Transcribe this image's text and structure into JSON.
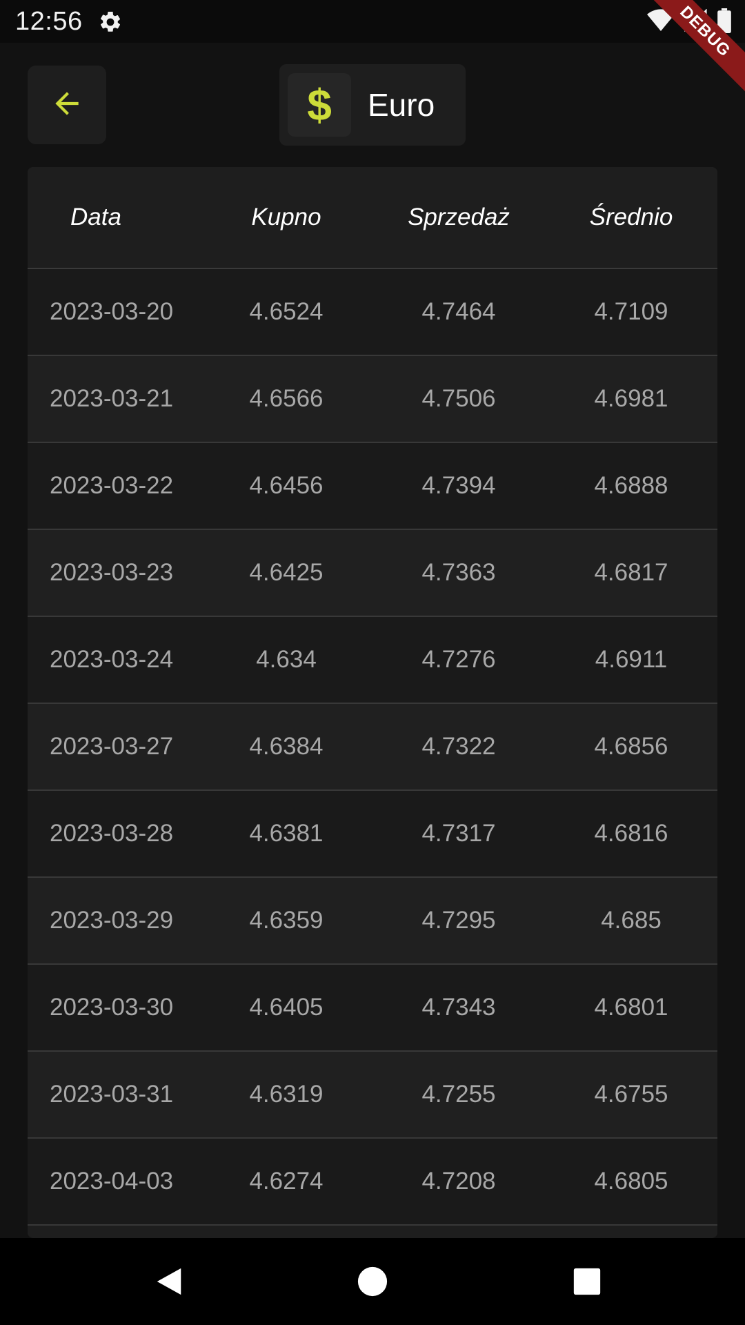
{
  "status_bar": {
    "time": "12:56",
    "icons": [
      "gear-icon",
      "wifi-icon",
      "signal-icon",
      "battery-icon"
    ]
  },
  "debug_banner": {
    "label": "DEBUG"
  },
  "header": {
    "back_icon": "arrow-left-icon",
    "currency_icon": "$",
    "currency_name": "Euro"
  },
  "table": {
    "columns": [
      "Data",
      "Kupno",
      "Sprzedaż",
      "Średnio"
    ],
    "rows": [
      [
        "2023-03-20",
        "4.6524",
        "4.7464",
        "4.7109"
      ],
      [
        "2023-03-21",
        "4.6566",
        "4.7506",
        "4.6981"
      ],
      [
        "2023-03-22",
        "4.6456",
        "4.7394",
        "4.6888"
      ],
      [
        "2023-03-23",
        "4.6425",
        "4.7363",
        "4.6817"
      ],
      [
        "2023-03-24",
        "4.634",
        "4.7276",
        "4.6911"
      ],
      [
        "2023-03-27",
        "4.6384",
        "4.7322",
        "4.6856"
      ],
      [
        "2023-03-28",
        "4.6381",
        "4.7317",
        "4.6816"
      ],
      [
        "2023-03-29",
        "4.6359",
        "4.7295",
        "4.685"
      ],
      [
        "2023-03-30",
        "4.6405",
        "4.7343",
        "4.6801"
      ],
      [
        "2023-03-31",
        "4.6319",
        "4.7255",
        "4.6755"
      ],
      [
        "2023-04-03",
        "4.6274",
        "4.7208",
        "4.6805"
      ]
    ]
  },
  "colors": {
    "accent": "#cddc39",
    "background": "#121212",
    "surface": "#1e1e1e",
    "debug": "#8b1a1a"
  },
  "nav_bar": {
    "icons": [
      "back-triangle-icon",
      "home-circle-icon",
      "recents-square-icon"
    ]
  }
}
